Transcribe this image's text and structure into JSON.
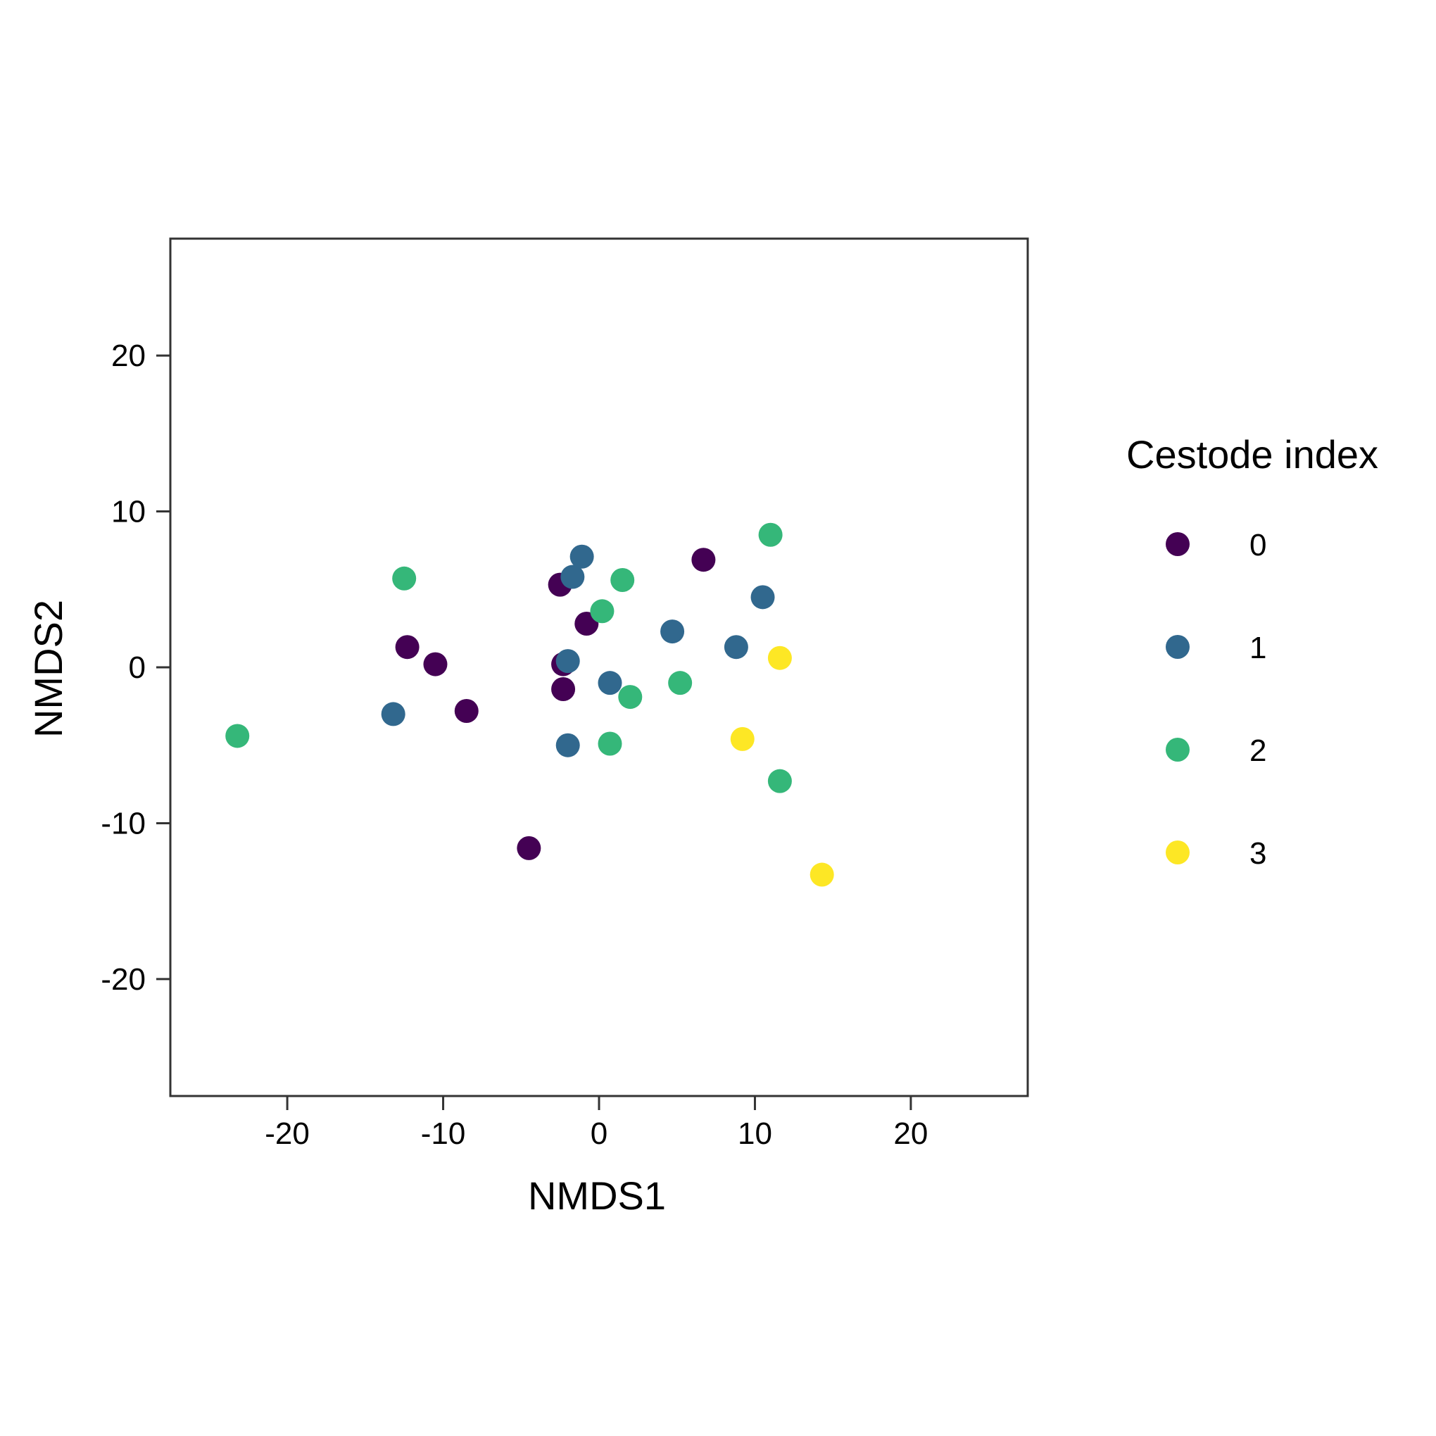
{
  "chart_data": {
    "type": "scatter",
    "xlabel": "NMDS1",
    "ylabel": "NMDS2",
    "xlim": [
      -27.5,
      27.5
    ],
    "ylim": [
      -27.5,
      27.5
    ],
    "x_ticks": [
      -20,
      -10,
      0,
      10,
      20
    ],
    "y_ticks": [
      -20,
      -10,
      0,
      10,
      20
    ],
    "x_tick_labels": [
      "-20",
      "-10",
      "0",
      "10",
      "20"
    ],
    "y_tick_labels": [
      "-20",
      "-10",
      "0",
      "10",
      "20"
    ],
    "grid": false,
    "legend": {
      "title": "Cestode index",
      "placement": "right"
    },
    "series": [
      {
        "name": "0",
        "color": "#440154",
        "points": [
          {
            "x": -12.3,
            "y": 1.3
          },
          {
            "x": -10.5,
            "y": 0.2
          },
          {
            "x": -8.5,
            "y": -2.8
          },
          {
            "x": -4.5,
            "y": -11.6
          },
          {
            "x": -2.5,
            "y": 5.3
          },
          {
            "x": -2.3,
            "y": 0.2
          },
          {
            "x": -2.3,
            "y": -1.4
          },
          {
            "x": -0.8,
            "y": 2.8
          },
          {
            "x": 6.7,
            "y": 6.9
          }
        ]
      },
      {
        "name": "1",
        "color": "#31688E",
        "points": [
          {
            "x": -13.2,
            "y": -3.0
          },
          {
            "x": -2.0,
            "y": 0.4
          },
          {
            "x": -2.0,
            "y": -5.0
          },
          {
            "x": -1.7,
            "y": 5.8
          },
          {
            "x": -1.1,
            "y": 7.1
          },
          {
            "x": 0.7,
            "y": -1.0
          },
          {
            "x": 4.7,
            "y": 2.3
          },
          {
            "x": 8.8,
            "y": 1.3
          },
          {
            "x": 10.5,
            "y": 4.5
          }
        ]
      },
      {
        "name": "2",
        "color": "#35B779",
        "points": [
          {
            "x": -23.2,
            "y": -4.4
          },
          {
            "x": -12.5,
            "y": 5.7
          },
          {
            "x": 0.2,
            "y": 3.6
          },
          {
            "x": 0.7,
            "y": -4.9
          },
          {
            "x": 1.5,
            "y": 5.6
          },
          {
            "x": 2.0,
            "y": -1.9
          },
          {
            "x": 5.2,
            "y": -1.0
          },
          {
            "x": 11.0,
            "y": 8.5
          },
          {
            "x": 11.6,
            "y": -7.3
          }
        ]
      },
      {
        "name": "3",
        "color": "#FDE725",
        "points": [
          {
            "x": 9.2,
            "y": -4.6
          },
          {
            "x": 11.6,
            "y": 0.6
          },
          {
            "x": 14.3,
            "y": -13.3
          }
        ]
      }
    ]
  }
}
